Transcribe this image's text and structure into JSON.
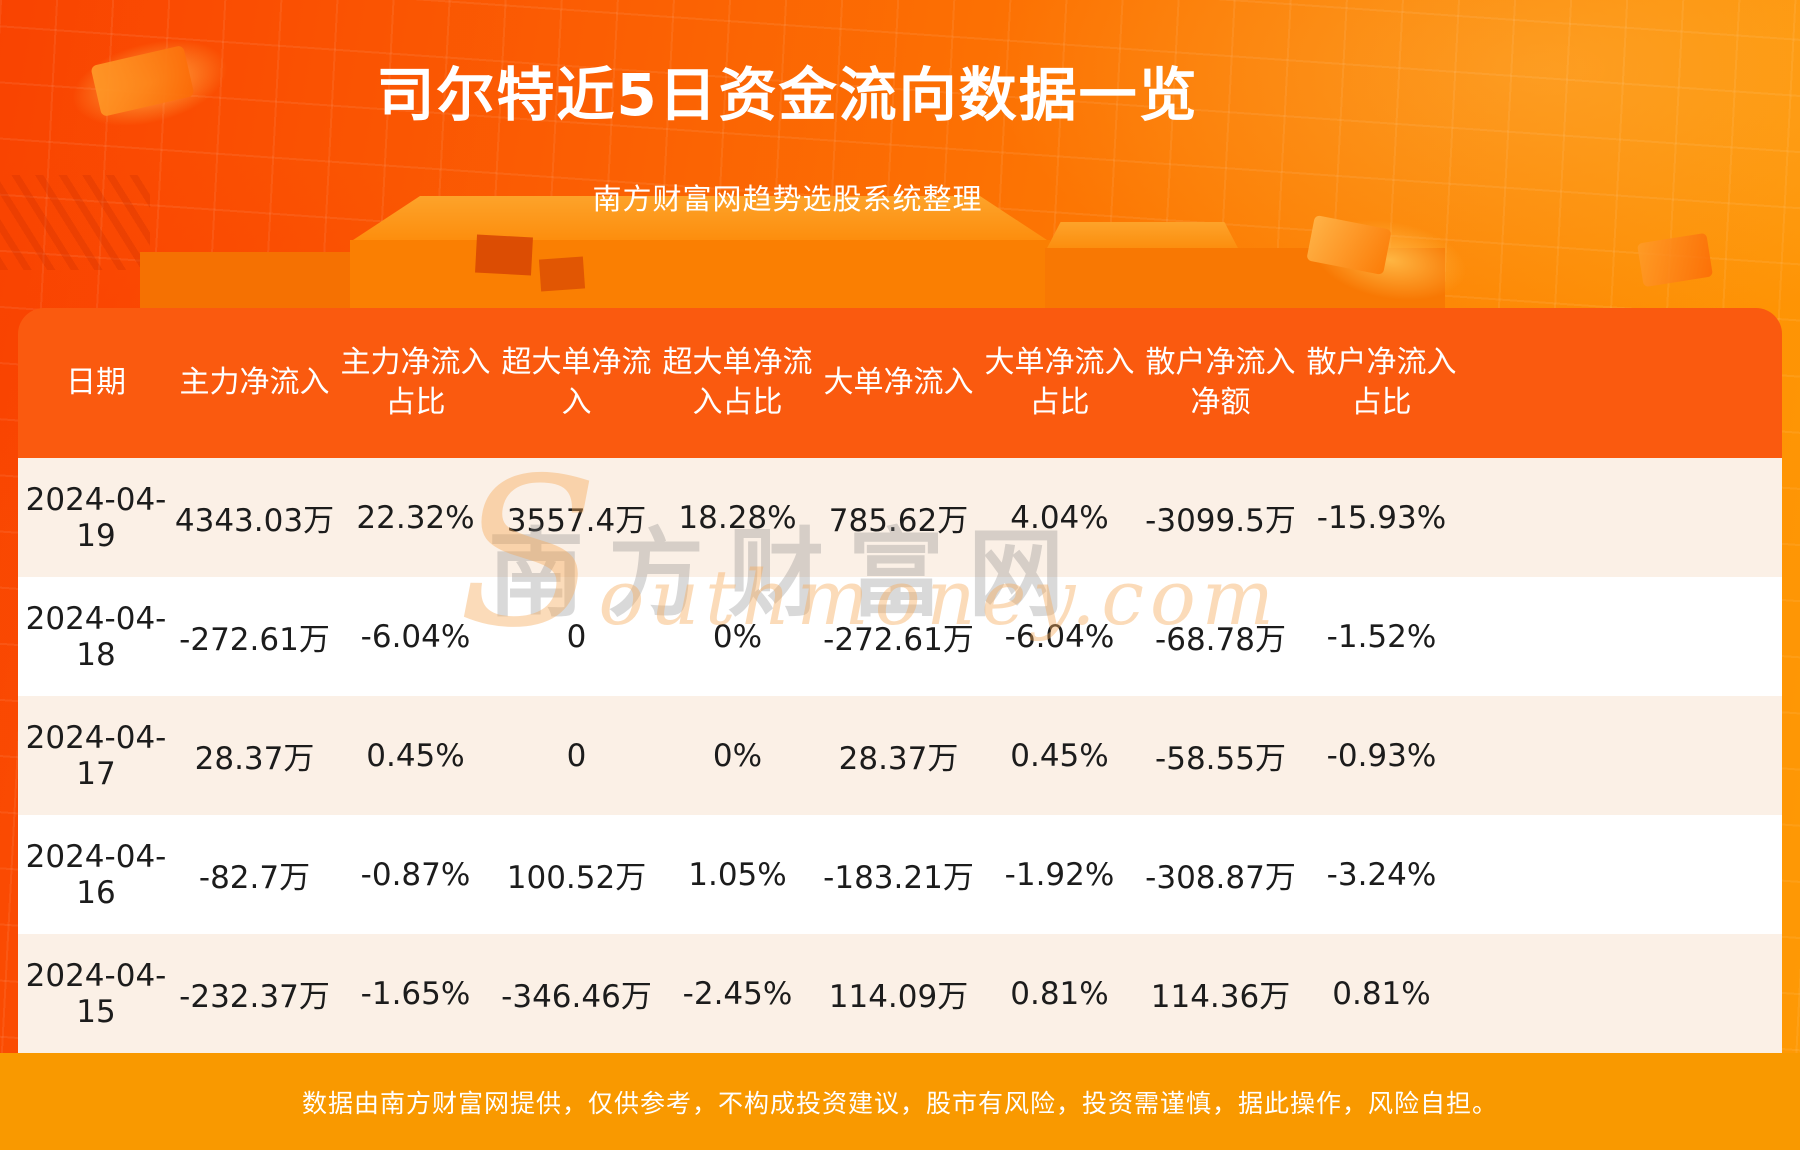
{
  "page": {
    "title": "司尔特近5日资金流向数据一览",
    "subtitle": "南方财富网趋势选股系统整理",
    "footer_note": "数据由南方财富网提供，仅供参考，不构成投资建议，股市有风险，投资需谨慎，据此操作，风险自担。"
  },
  "watermark": {
    "cn": "南方财富网",
    "en_initial": "S",
    "en_rest": "outhmoney.com"
  },
  "colors": {
    "bg_left": "#f94301",
    "bg_right": "#fe9a05",
    "header_bg": "#fa5a0f",
    "row_alt": "#fbf0e6",
    "row_bg": "#ffffff",
    "footer_bg": "#f99900",
    "title_color": "#ffffff"
  },
  "table": {
    "header_lines": [
      "日期",
      "主力净流入",
      "主力净流入\n占比",
      "超大单净流\n入",
      "超大单净流\n入占比",
      "大单净流入",
      "大单净流入\n占比",
      "散户净流入\n净额",
      "散户净流入\n占比"
    ]
  },
  "chart_data": {
    "type": "table",
    "title": "司尔特近5日资金流向数据一览",
    "subtitle": "南方财富网趋势选股系统整理",
    "columns": [
      "日期",
      "主力净流入",
      "主力净流入占比",
      "超大单净流入",
      "超大单净流入占比",
      "大单净流入",
      "大单净流入占比",
      "散户净流入净额",
      "散户净流入占比"
    ],
    "rows": [
      [
        "2024-04-19",
        "4343.03万",
        "22.32%",
        "3557.4万",
        "18.28%",
        "785.62万",
        "4.04%",
        "-3099.5万",
        "-15.93%"
      ],
      [
        "2024-04-18",
        "-272.61万",
        "-6.04%",
        "0",
        "0%",
        "-272.61万",
        "-6.04%",
        "-68.78万",
        "-1.52%"
      ],
      [
        "2024-04-17",
        "28.37万",
        "0.45%",
        "0",
        "0%",
        "28.37万",
        "0.45%",
        "-58.55万",
        "-0.93%"
      ],
      [
        "2024-04-16",
        "-82.7万",
        "-0.87%",
        "100.52万",
        "1.05%",
        "-183.21万",
        "-1.92%",
        "-308.87万",
        "-3.24%"
      ],
      [
        "2024-04-15",
        "-232.37万",
        "-1.65%",
        "-346.46万",
        "-2.45%",
        "114.09万",
        "0.81%",
        "114.36万",
        "0.81%"
      ]
    ],
    "source_note": "数据由南方财富网提供，仅供参考，不构成投资建议，股市有风险，投资需谨慎，据此操作，风险自担。"
  }
}
